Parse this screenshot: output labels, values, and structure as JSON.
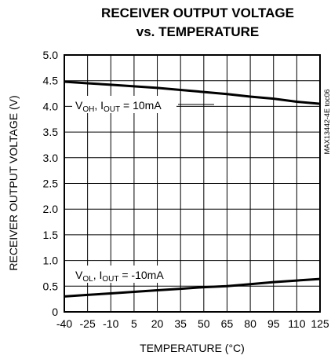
{
  "chart_data": {
    "type": "line",
    "title_line1": "RECEIVER OUTPUT VOLTAGE",
    "title_line2": "vs. TEMPERATURE",
    "xlabel": "TEMPERATURE (°C)",
    "ylabel": "RECEIVER OUTPUT VOLTAGE (V)",
    "part_number": "MAX13442-4E toc06",
    "xlim": [
      -40,
      125
    ],
    "ylim": [
      0,
      5.0
    ],
    "x_ticks": [
      -40,
      -25,
      -10,
      5,
      20,
      35,
      50,
      65,
      80,
      95,
      110,
      125
    ],
    "x_tick_labels": [
      "-40",
      "-25",
      "-10",
      "5",
      "20",
      "35",
      "50",
      "65",
      "80",
      "95",
      "110",
      "125"
    ],
    "y_ticks": [
      0,
      0.5,
      1.0,
      1.5,
      2.0,
      2.5,
      3.0,
      3.5,
      4.0,
      4.5,
      5.0
    ],
    "y_tick_labels": [
      "0",
      "0.5",
      "1.0",
      "1.5",
      "2.0",
      "2.5",
      "3.0",
      "3.5",
      "4.0",
      "4.5",
      "5.0"
    ],
    "grid": true,
    "series": [
      {
        "label_main": "V",
        "label_sub1": "OH",
        "label_mid": ", I",
        "label_sub2": "OUT",
        "label_tail": " = 10mA",
        "x": [
          -40,
          -25,
          -10,
          5,
          20,
          35,
          50,
          65,
          80,
          95,
          110,
          125
        ],
        "y": [
          4.48,
          4.45,
          4.42,
          4.39,
          4.36,
          4.32,
          4.28,
          4.24,
          4.19,
          4.15,
          4.09,
          4.05
        ]
      },
      {
        "label_main": "V",
        "label_sub1": "OL",
        "label_mid": ", I",
        "label_sub2": "OUT",
        "label_tail": " = -10mA",
        "x": [
          -40,
          -25,
          -10,
          5,
          20,
          35,
          50,
          65,
          80,
          95,
          110,
          125
        ],
        "y": [
          0.3,
          0.33,
          0.36,
          0.39,
          0.42,
          0.45,
          0.48,
          0.5,
          0.54,
          0.58,
          0.61,
          0.64
        ]
      }
    ]
  }
}
